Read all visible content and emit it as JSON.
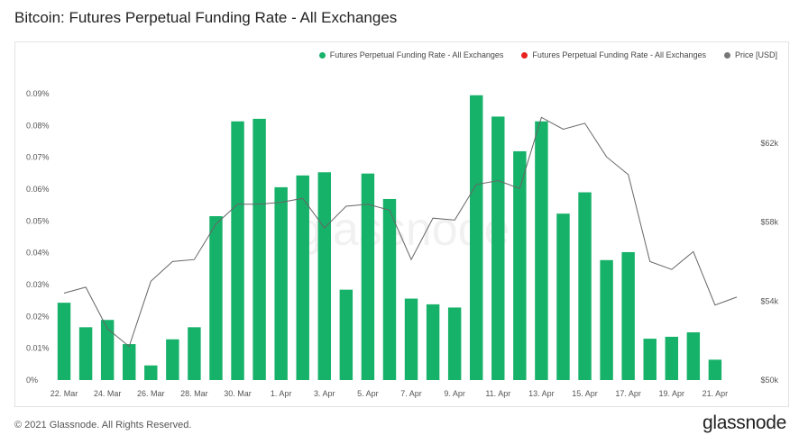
{
  "title": "Bitcoin: Futures Perpetual Funding Rate - All Exchanges",
  "footer": "© 2021 Glassnode. All Rights Reserved.",
  "logo": "glassnode",
  "watermark": "glassnode",
  "legend": [
    {
      "label": "Futures Perpetual Funding Rate - All Exchanges",
      "color": "#17b26a"
    },
    {
      "label": "Futures Perpetual Funding Rate - All Exchanges",
      "color": "#e8201e"
    },
    {
      "label": "Price [USD]",
      "color": "#777777"
    }
  ],
  "chart_data": {
    "type": "bar",
    "categories": [
      "22. Mar",
      "23. Mar",
      "24. Mar",
      "25. Mar",
      "26. Mar",
      "27. Mar",
      "28. Mar",
      "29. Mar",
      "30. Mar",
      "31. Mar",
      "1. Apr",
      "2. Apr",
      "3. Apr",
      "4. Apr",
      "5. Apr",
      "6. Apr",
      "7. Apr",
      "8. Apr",
      "9. Apr",
      "10. Apr",
      "11. Apr",
      "12. Apr",
      "13. Apr",
      "14. Apr",
      "15. Apr",
      "16. Apr",
      "17. Apr",
      "18. Apr",
      "19. Apr",
      "20. Apr",
      "21. Apr",
      "22. Apr"
    ],
    "x_tick_labels": [
      "22. Mar",
      "24. Mar",
      "26. Mar",
      "28. Mar",
      "30. Mar",
      "1. Apr",
      "3. Apr",
      "5. Apr",
      "7. Apr",
      "9. Apr",
      "11. Apr",
      "13. Apr",
      "15. Apr",
      "17. Apr",
      "19. Apr",
      "21. Apr"
    ],
    "series": [
      {
        "name": "Futures Perpetual Funding Rate - All Exchanges",
        "type": "bar",
        "color": "#17b26a",
        "axis": "left",
        "values": [
          0.0243,
          0.0166,
          0.0189,
          0.0113,
          0.0046,
          0.0128,
          0.0166,
          0.0515,
          0.0813,
          0.0821,
          0.0606,
          0.0643,
          0.0653,
          0.0284,
          0.0649,
          0.0569,
          0.0256,
          0.0238,
          0.0228,
          0.0895,
          0.0828,
          0.0719,
          0.0813,
          0.0523,
          0.059,
          0.0377,
          0.0402,
          0.013,
          0.0136,
          0.015,
          0.0064,
          null
        ]
      },
      {
        "name": "Price [USD]",
        "type": "line",
        "color": "#666666",
        "axis": "right",
        "values": [
          54400,
          54700,
          52600,
          51700,
          55000,
          56000,
          56100,
          57900,
          58900,
          58900,
          59000,
          59200,
          57700,
          58800,
          58900,
          58600,
          56100,
          58200,
          58100,
          59900,
          60100,
          59700,
          63300,
          62700,
          63000,
          61300,
          60400,
          56000,
          55600,
          56500,
          53800,
          54200
        ]
      }
    ],
    "y_left": {
      "min": 0,
      "max": 0.09,
      "ticks": [
        "0%",
        "0.01%",
        "0.02%",
        "0.03%",
        "0.04%",
        "0.05%",
        "0.06%",
        "0.07%",
        "0.08%",
        "0.09%"
      ]
    },
    "y_right": {
      "min": 50000,
      "max": 64500,
      "ticks": [
        {
          "value": 50000,
          "label": "$50k"
        },
        {
          "value": 54000,
          "label": "$54k"
        },
        {
          "value": 58000,
          "label": "$58k"
        },
        {
          "value": 62000,
          "label": "$62k"
        }
      ]
    },
    "grid": false,
    "legend_position": "top-right"
  }
}
